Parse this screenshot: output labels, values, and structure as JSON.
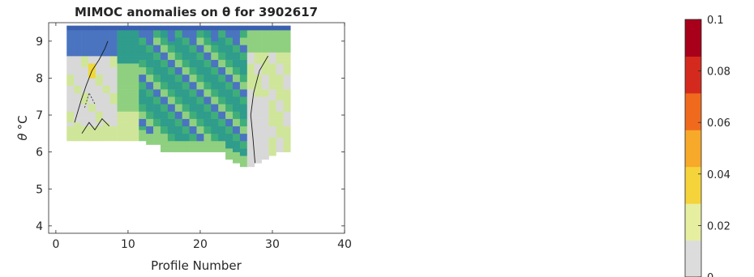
{
  "chart_data": {
    "type": "heatmap",
    "title": "MIMOC anomalies on θ  for 3902617",
    "xlabel": "Profile Number",
    "ylabel_var": "θ",
    "ylabel_unit": "°C",
    "xlim": [
      -1,
      40
    ],
    "ylim": [
      3.8,
      9.5
    ],
    "xticks": [
      0,
      10,
      20,
      30,
      40
    ],
    "yticks": [
      4,
      5,
      6,
      7,
      8,
      9
    ],
    "colorbar": {
      "ticks": [
        0,
        0.02,
        0.04,
        0.06,
        0.08,
        0.1
      ],
      "tick_labels": [
        "0",
        "0.02",
        "0.04",
        "0.06",
        "0.08",
        "0.1"
      ],
      "colors": [
        "#dcdcdc",
        "#e6eea0",
        "#f5d33a",
        "#f7a92a",
        "#f06a1e",
        "#d42a1e",
        "#a8001a"
      ]
    },
    "profile_bottoms": [
      6.3,
      6.3,
      6.3,
      6.3,
      6.3,
      6.3,
      6.3,
      6.3,
      6.3,
      6.3,
      6.3,
      6.2,
      6.2,
      6.0,
      6.0,
      6.0,
      6.0,
      6.0,
      6.0,
      6.0,
      6.0,
      6.0,
      5.8,
      5.7,
      5.6,
      5.6,
      5.7,
      5.8,
      5.9,
      6.0,
      6.0
    ],
    "anomaly_colors": {
      "deep_blue": "#3a5fb0",
      "blue": "#4a74c0",
      "teal": "#2f9c8c",
      "green": "#3fae7a",
      "light_green": "#8fd080",
      "yellow_green": "#cfe69a",
      "gray": "#d8d8d8",
      "yellow": "#f0d83a",
      "orange": "#f0a030"
    }
  }
}
